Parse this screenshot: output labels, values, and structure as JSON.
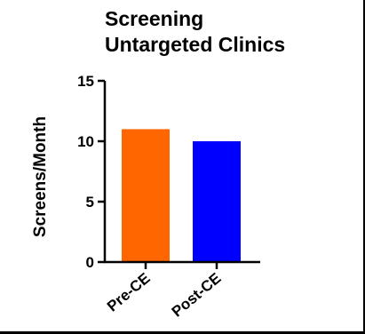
{
  "chart_data": {
    "type": "bar",
    "title": [
      "Screening",
      "Untargeted Clinics"
    ],
    "xlabel": "",
    "ylabel": "Screens/Month",
    "categories": [
      "Pre-CE",
      "Post-CE"
    ],
    "values": [
      11,
      10
    ],
    "bar_colors": [
      "#ff6600",
      "#0000ff"
    ],
    "ylim": [
      0,
      15
    ],
    "yticks": [
      "0",
      "5",
      "10",
      "15"
    ],
    "grid": false,
    "legend": "none"
  },
  "colors": {
    "background": "#ffffff",
    "axis": "#000000"
  }
}
